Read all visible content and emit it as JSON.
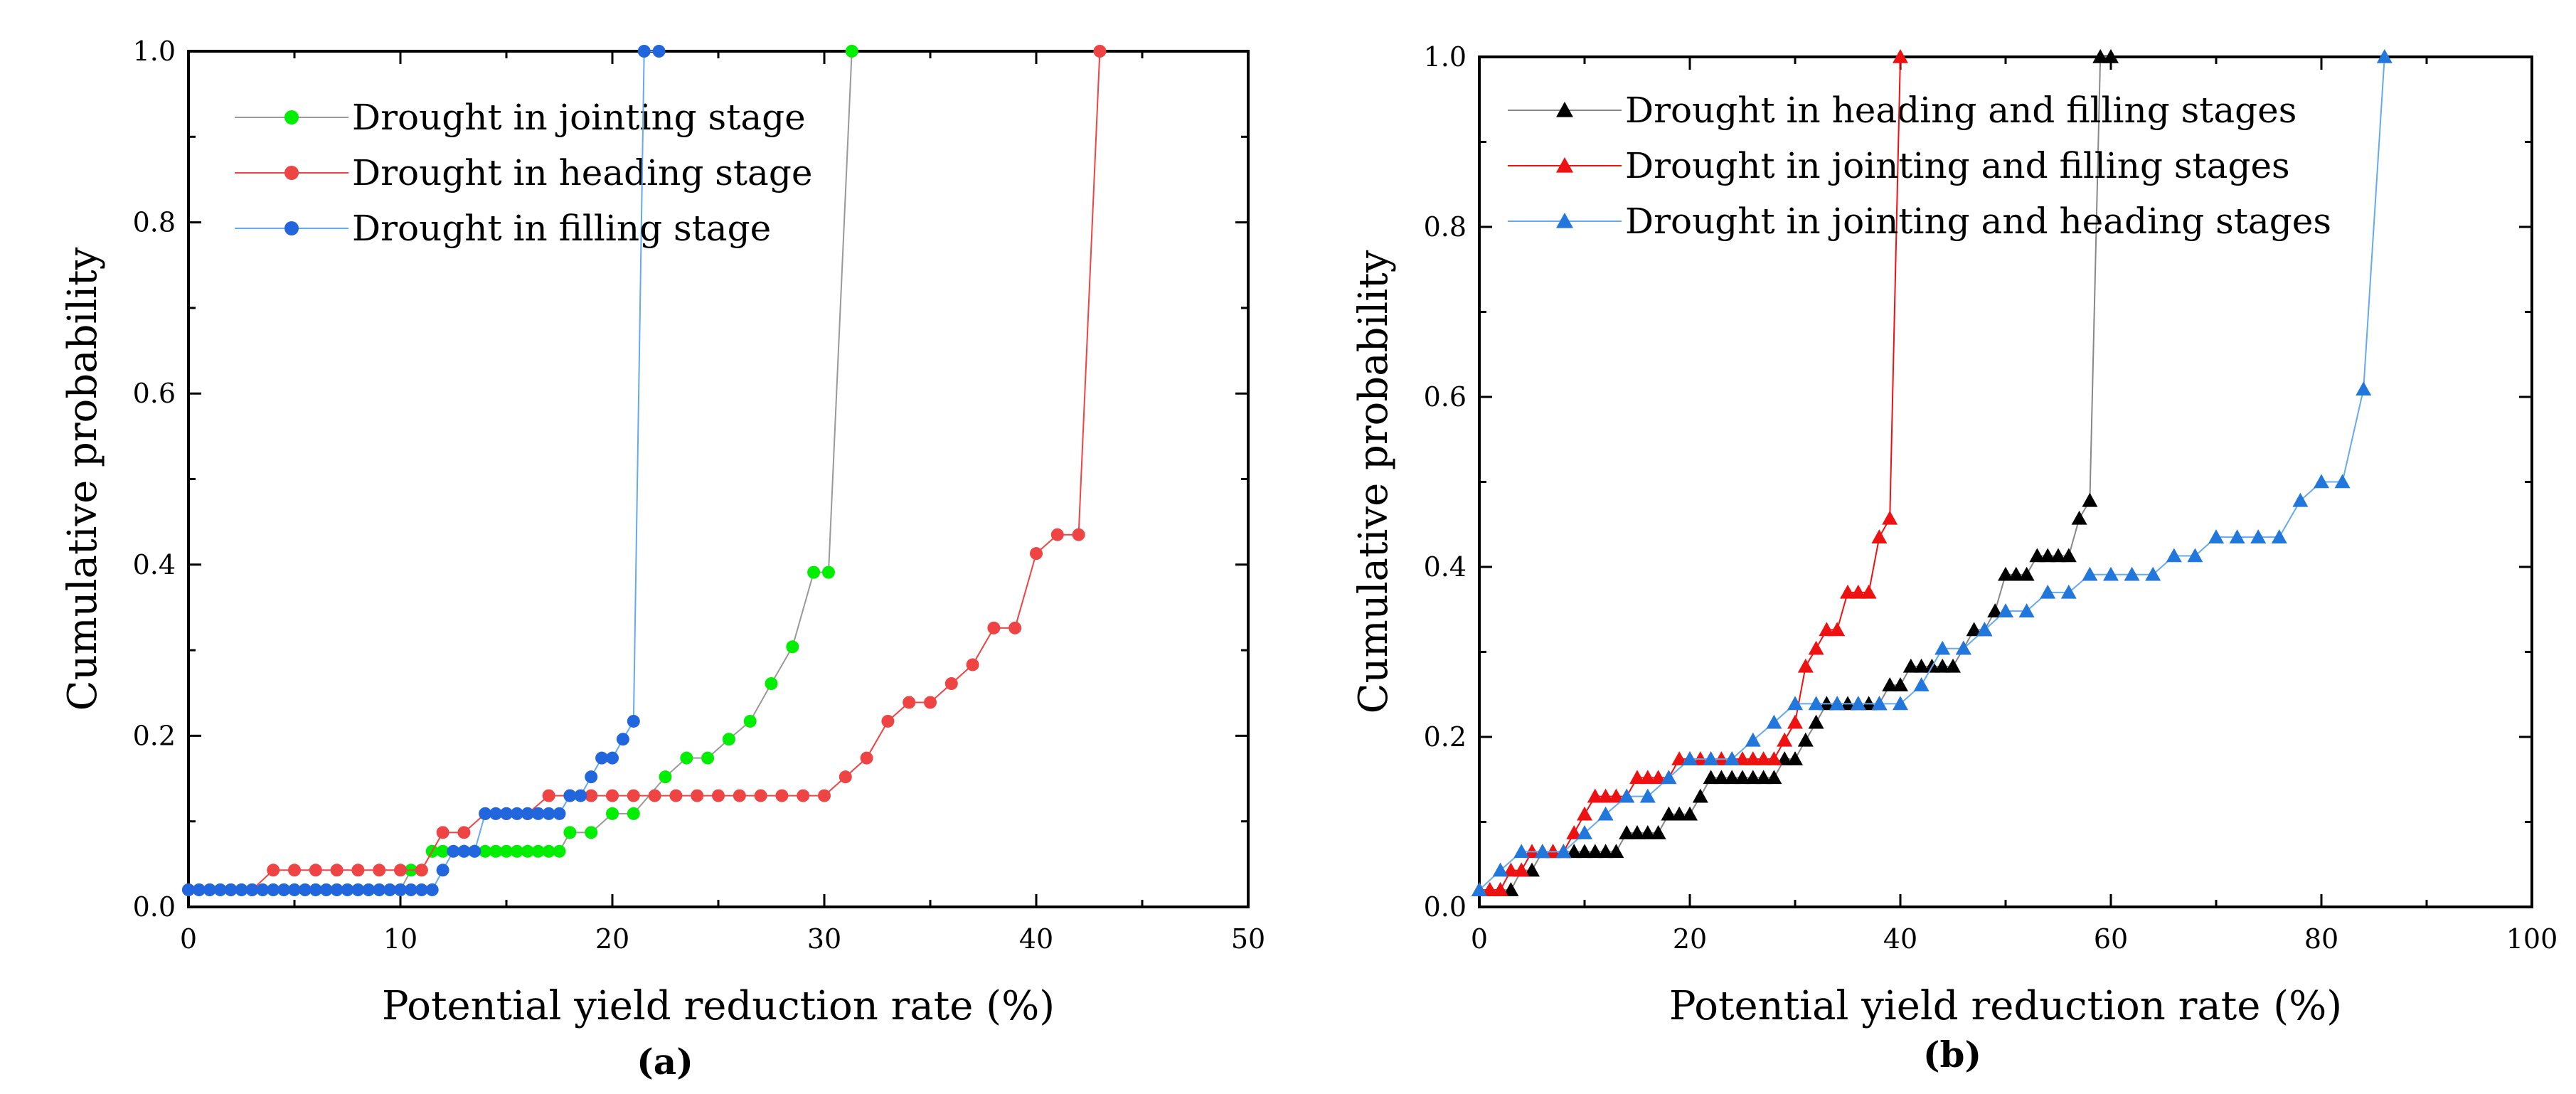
{
  "figure": {
    "panel_labels": [
      "(a)",
      "(b)"
    ]
  },
  "chart_data": [
    {
      "type": "line",
      "panel": "(a)",
      "title": "",
      "xlabel": "Potential yield reduction rate (%)",
      "ylabel": "Cumulative probability",
      "xlim": [
        0,
        50
      ],
      "ylim": [
        0,
        1
      ],
      "xticks": [
        0,
        10,
        20,
        30,
        40,
        50
      ],
      "yticks": [
        0,
        0.2,
        0.4,
        0.6,
        0.8,
        1
      ],
      "xtick_labels": [
        "0",
        "10",
        "20",
        "30",
        "40",
        "50"
      ],
      "ytick_labels": [
        "0.0",
        "0.2",
        "0.4",
        "0.6",
        "0.8",
        "1.0"
      ],
      "legend_position": "top-left",
      "series": [
        {
          "name": "Drought in jointing stage",
          "marker": "circle",
          "color": "#00ee00",
          "line_color": "#999999",
          "x": [
            0,
            0.5,
            1,
            1.5,
            2,
            2.5,
            3,
            3.5,
            4,
            4.5,
            5,
            5.5,
            6,
            6.5,
            7,
            7.5,
            8,
            8.5,
            9,
            9.5,
            10,
            10.5,
            11,
            11.5,
            12,
            13,
            13.5,
            14,
            14.5,
            15,
            15.5,
            16,
            16.5,
            17,
            17.5,
            18,
            19,
            20,
            21,
            22.5,
            23.5,
            24.5,
            25.5,
            26.5,
            27.5,
            28.5,
            29.5,
            30.2,
            31.3
          ],
          "y": [
            0.02,
            0.02,
            0.02,
            0.02,
            0.02,
            0.02,
            0.02,
            0.02,
            0.02,
            0.02,
            0.02,
            0.02,
            0.02,
            0.02,
            0.02,
            0.02,
            0.02,
            0.02,
            0.02,
            0.02,
            0.02,
            0.043,
            0.043,
            0.065,
            0.065,
            0.065,
            0.065,
            0.065,
            0.065,
            0.065,
            0.065,
            0.065,
            0.065,
            0.065,
            0.065,
            0.087,
            0.087,
            0.109,
            0.109,
            0.152,
            0.174,
            0.174,
            0.196,
            0.217,
            0.261,
            0.304,
            0.391,
            0.391,
            1.0
          ]
        },
        {
          "name": "Drought in heading stage",
          "marker": "circle",
          "color": "#ee4444",
          "line_color": "#ee4444",
          "x": [
            0,
            1,
            2,
            3,
            4,
            5,
            6,
            7,
            8,
            9,
            10,
            11,
            12,
            13,
            14,
            15,
            16,
            17,
            18,
            19,
            20,
            21,
            22,
            23,
            24,
            25,
            26,
            27,
            28,
            29,
            30,
            31,
            32,
            33,
            34,
            35,
            36,
            37,
            38,
            39,
            40,
            41,
            42,
            43
          ],
          "y": [
            0.02,
            0.02,
            0.02,
            0.02,
            0.043,
            0.043,
            0.043,
            0.043,
            0.043,
            0.043,
            0.043,
            0.043,
            0.087,
            0.087,
            0.109,
            0.109,
            0.109,
            0.13,
            0.13,
            0.13,
            0.13,
            0.13,
            0.13,
            0.13,
            0.13,
            0.13,
            0.13,
            0.13,
            0.13,
            0.13,
            0.13,
            0.152,
            0.174,
            0.217,
            0.239,
            0.239,
            0.261,
            0.283,
            0.326,
            0.326,
            0.413,
            0.435,
            0.435,
            1.0
          ]
        },
        {
          "name": "Drought in filling stage",
          "marker": "circle",
          "color": "#2266dd",
          "line_color": "#66aaee",
          "x": [
            0,
            0.5,
            1,
            1.5,
            2,
            2.5,
            3,
            3.5,
            4,
            4.5,
            5,
            5.5,
            6,
            6.5,
            7,
            7.5,
            8,
            8.5,
            9,
            9.5,
            10,
            10.5,
            11,
            11.5,
            12,
            12.5,
            13,
            13.5,
            14,
            14.5,
            15,
            15.5,
            16,
            16.5,
            17,
            17.5,
            18,
            18.5,
            19,
            19.5,
            20,
            20.5,
            21,
            21.5,
            22.2
          ],
          "y": [
            0.02,
            0.02,
            0.02,
            0.02,
            0.02,
            0.02,
            0.02,
            0.02,
            0.02,
            0.02,
            0.02,
            0.02,
            0.02,
            0.02,
            0.02,
            0.02,
            0.02,
            0.02,
            0.02,
            0.02,
            0.02,
            0.02,
            0.02,
            0.02,
            0.043,
            0.065,
            0.065,
            0.065,
            0.109,
            0.109,
            0.109,
            0.109,
            0.109,
            0.109,
            0.109,
            0.109,
            0.13,
            0.13,
            0.152,
            0.174,
            0.174,
            0.196,
            0.217,
            1.0,
            1.0
          ]
        }
      ]
    },
    {
      "type": "line",
      "panel": "(b)",
      "title": "",
      "xlabel": "Potential yield reduction rate (%)",
      "ylabel": "Cumulative probability",
      "xlim": [
        0,
        100
      ],
      "ylim": [
        0,
        1
      ],
      "xticks": [
        0,
        20,
        40,
        60,
        80,
        100
      ],
      "yticks": [
        0,
        0.2,
        0.4,
        0.6,
        0.8,
        1
      ],
      "xtick_labels": [
        "0",
        "20",
        "40",
        "60",
        "80",
        "100"
      ],
      "ytick_labels": [
        "0.0",
        "0.2",
        "0.4",
        "0.6",
        "0.8",
        "1.0"
      ],
      "legend_position": "top-left",
      "series": [
        {
          "name": "Drought in heading and filling stages",
          "marker": "triangle",
          "color": "#000000",
          "line_color": "#888888",
          "x": [
            0,
            1,
            2,
            3,
            4,
            5,
            6,
            7,
            8,
            9,
            10,
            11,
            12,
            13,
            14,
            15,
            16,
            17,
            18,
            19,
            20,
            21,
            22,
            23,
            24,
            25,
            26,
            27,
            28,
            29,
            30,
            31,
            32,
            33,
            34,
            35,
            36,
            37,
            38,
            39,
            40,
            41,
            42,
            43,
            44,
            45,
            46,
            47,
            48,
            49,
            50,
            51,
            52,
            53,
            54,
            55,
            56,
            57,
            58,
            59,
            60
          ],
          "y": [
            0.02,
            0.02,
            0.02,
            0.02,
            0.043,
            0.043,
            0.065,
            0.065,
            0.065,
            0.065,
            0.065,
            0.065,
            0.065,
            0.065,
            0.087,
            0.087,
            0.087,
            0.087,
            0.109,
            0.109,
            0.109,
            0.13,
            0.152,
            0.152,
            0.152,
            0.152,
            0.152,
            0.152,
            0.152,
            0.174,
            0.174,
            0.196,
            0.217,
            0.239,
            0.239,
            0.239,
            0.239,
            0.239,
            0.239,
            0.261,
            0.261,
            0.283,
            0.283,
            0.283,
            0.283,
            0.283,
            0.304,
            0.326,
            0.326,
            0.348,
            0.391,
            0.391,
            0.391,
            0.413,
            0.413,
            0.413,
            0.413,
            0.457,
            0.478,
            1.0,
            1.0
          ]
        },
        {
          "name": "Drought in jointing and filling stages",
          "marker": "triangle",
          "color": "#ee1111",
          "line_color": "#ee1111",
          "x": [
            0,
            1,
            2,
            3,
            4,
            5,
            6,
            7,
            8,
            9,
            10,
            11,
            12,
            13,
            14,
            15,
            16,
            17,
            18,
            19,
            20,
            21,
            22,
            23,
            24,
            25,
            26,
            27,
            28,
            29,
            30,
            31,
            32,
            33,
            34,
            35,
            36,
            37,
            38,
            39,
            40
          ],
          "y": [
            0.02,
            0.02,
            0.02,
            0.043,
            0.043,
            0.065,
            0.065,
            0.065,
            0.065,
            0.087,
            0.109,
            0.13,
            0.13,
            0.13,
            0.13,
            0.152,
            0.152,
            0.152,
            0.152,
            0.174,
            0.174,
            0.174,
            0.174,
            0.174,
            0.174,
            0.174,
            0.174,
            0.174,
            0.174,
            0.196,
            0.217,
            0.283,
            0.304,
            0.326,
            0.326,
            0.37,
            0.37,
            0.37,
            0.435,
            0.457,
            1.0
          ]
        },
        {
          "name": "Drought in jointing and heading stages",
          "marker": "triangle",
          "color": "#2277dd",
          "line_color": "#66aaee",
          "x": [
            0,
            2,
            4,
            6,
            8,
            10,
            12,
            14,
            16,
            18,
            20,
            22,
            24,
            26,
            28,
            30,
            32,
            34,
            36,
            38,
            40,
            42,
            44,
            46,
            48,
            50,
            52,
            54,
            56,
            58,
            60,
            62,
            64,
            66,
            68,
            70,
            72,
            74,
            76,
            78,
            80,
            82,
            84,
            86
          ],
          "y": [
            0.02,
            0.043,
            0.065,
            0.065,
            0.065,
            0.087,
            0.109,
            0.13,
            0.13,
            0.152,
            0.174,
            0.174,
            0.174,
            0.196,
            0.217,
            0.239,
            0.239,
            0.239,
            0.239,
            0.239,
            0.239,
            0.261,
            0.304,
            0.304,
            0.326,
            0.348,
            0.348,
            0.37,
            0.37,
            0.391,
            0.391,
            0.391,
            0.391,
            0.413,
            0.413,
            0.435,
            0.435,
            0.435,
            0.435,
            0.478,
            0.5,
            0.5,
            0.609,
            1.0
          ]
        }
      ]
    }
  ]
}
